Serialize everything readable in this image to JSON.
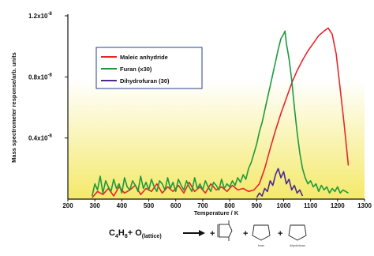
{
  "chart_data": {
    "type": "line",
    "xlabel": "Temperature / K",
    "ylabel": "Mass spectrometer response/arb. units",
    "xlim": [
      200,
      1300
    ],
    "ylim": [
      0,
      1.2e-08
    ],
    "x_ticks": [
      "200",
      "300",
      "400",
      "500",
      "600",
      "700",
      "800",
      "900",
      "1000",
      "1100",
      "1200",
      "1300"
    ],
    "y_ticks": [
      {
        "value": 4e-09,
        "label": "0.4x10",
        "exp": "-8"
      },
      {
        "value": 8e-09,
        "label": "0.8x10",
        "exp": "-8"
      },
      {
        "value": 1.2e-08,
        "label": "1.2x10",
        "exp": "-8"
      }
    ],
    "grid": false,
    "legend_position": "top-left",
    "series": [
      {
        "name": "Maleic anhydride",
        "color": "#e8252b",
        "x": [
          290,
          310,
          330,
          350,
          370,
          390,
          410,
          430,
          450,
          470,
          490,
          510,
          530,
          550,
          570,
          590,
          610,
          630,
          650,
          670,
          690,
          710,
          730,
          750,
          770,
          790,
          810,
          830,
          850,
          870,
          890,
          910,
          930,
          950,
          970,
          990,
          1010,
          1030,
          1050,
          1070,
          1090,
          1110,
          1130,
          1150,
          1165,
          1180,
          1195,
          1210,
          1225,
          1240
        ],
        "y": [
          1e-10,
          5e-10,
          3e-10,
          7e-10,
          2e-10,
          8e-10,
          4e-10,
          6e-10,
          9e-10,
          3e-10,
          7e-10,
          5e-10,
          1e-09,
          4e-10,
          8e-10,
          5e-10,
          9e-10,
          4e-10,
          1.1e-09,
          5e-10,
          8e-10,
          4e-10,
          1e-09,
          6e-10,
          8e-10,
          5e-10,
          9e-10,
          6e-10,
          7e-10,
          5e-10,
          6e-10,
          1e-09,
          2e-09,
          3.3e-09,
          4.5e-09,
          5.6e-09,
          6.6e-09,
          7.6e-09,
          8.4e-09,
          9.1e-09,
          9.7e-09,
          1.02e-08,
          1.07e-08,
          1.1e-08,
          1.12e-08,
          1.08e-08,
          9.5e-09,
          7.2e-09,
          4.8e-09,
          2.2e-09
        ]
      },
      {
        "name": "Furan (x30)",
        "color": "#1e9a3c",
        "x": [
          290,
          300,
          310,
          320,
          330,
          340,
          350,
          360,
          370,
          380,
          390,
          400,
          410,
          420,
          430,
          440,
          450,
          460,
          470,
          480,
          490,
          500,
          510,
          520,
          530,
          540,
          550,
          560,
          570,
          580,
          590,
          600,
          610,
          620,
          630,
          640,
          650,
          660,
          670,
          680,
          690,
          700,
          710,
          720,
          730,
          740,
          750,
          760,
          770,
          780,
          790,
          800,
          810,
          820,
          830,
          840,
          850,
          860,
          870,
          880,
          890,
          900,
          910,
          920,
          930,
          940,
          950,
          960,
          970,
          980,
          990,
          1000,
          1005,
          1010,
          1020,
          1030,
          1040,
          1050,
          1060,
          1070,
          1080,
          1090,
          1100,
          1110,
          1120,
          1130,
          1140,
          1150,
          1160,
          1170,
          1180,
          1190,
          1200,
          1210,
          1220,
          1230,
          1240
        ],
        "y": [
          2e-10,
          1e-09,
          6e-10,
          1.5e-09,
          4e-10,
          1.2e-09,
          8e-10,
          5e-10,
          1.3e-09,
          7e-10,
          1e-09,
          4e-10,
          1.4e-09,
          8e-10,
          6e-10,
          1.2e-09,
          9e-10,
          5e-10,
          1.5e-09,
          7e-10,
          1.1e-09,
          6e-10,
          1.3e-09,
          8e-10,
          5e-10,
          1.2e-09,
          1e-09,
          6e-10,
          1.4e-09,
          7e-10,
          1.1e-09,
          5e-10,
          1.3e-09,
          9e-10,
          6e-10,
          1.2e-09,
          8e-10,
          5e-10,
          1.4e-09,
          7e-10,
          1e-09,
          6e-10,
          1.2e-09,
          8e-10,
          5e-10,
          1.1e-09,
          9e-10,
          6e-10,
          1.3e-09,
          7e-10,
          1e-09,
          8e-10,
          1.2e-09,
          9e-10,
          1.4e-09,
          1.1e-09,
          1.6e-09,
          1.3e-09,
          2e-09,
          2.4e-09,
          3e-09,
          3.6e-09,
          4.4e-09,
          5e-09,
          5.8e-09,
          6.6e-09,
          7.4e-09,
          8.2e-09,
          9e-09,
          9.8e-09,
          1.05e-08,
          1.08e-08,
          1.1e-08,
          1.02e-08,
          9.2e-09,
          7.8e-09,
          6e-09,
          4.4e-09,
          3e-09,
          2e-09,
          1.4e-09,
          1e-09,
          1.2e-09,
          8e-10,
          1e-09,
          5e-10,
          9e-10,
          6e-10,
          8e-10,
          4e-10,
          7e-10,
          5e-10,
          8e-10,
          4e-10,
          6e-10,
          5e-10,
          4e-10
        ]
      },
      {
        "name": "Dihydrofuran (30)",
        "color": "#4b2a8c",
        "x": [
          900,
          910,
          920,
          930,
          940,
          950,
          960,
          970,
          980,
          990,
          1000,
          1010,
          1020,
          1030,
          1040,
          1050,
          1060,
          1070
        ],
        "y": [
          1e-10,
          4e-10,
          2e-10,
          7e-10,
          5e-10,
          1.2e-09,
          9e-10,
          1.6e-09,
          2e-09,
          1.4e-09,
          1.8e-09,
          1e-09,
          1.3e-09,
          6e-10,
          9e-10,
          4e-10,
          6e-10,
          2e-10
        ]
      }
    ]
  },
  "equation": {
    "reactant": "C",
    "reactant_sub1": "4",
    "reactant_h": "H",
    "reactant_sub2": "8",
    "plus_o": "+ O",
    "lattice": "(lattice)",
    "plus1": "+",
    "plus2": "+",
    "plus3": "+",
    "label_furan": "furan",
    "label_dihydrofuran": "dihydrofuran"
  },
  "colors": {
    "gradient_top": "#ffffff",
    "gradient_bottom": "#f4e96a",
    "axis": "#111111"
  }
}
